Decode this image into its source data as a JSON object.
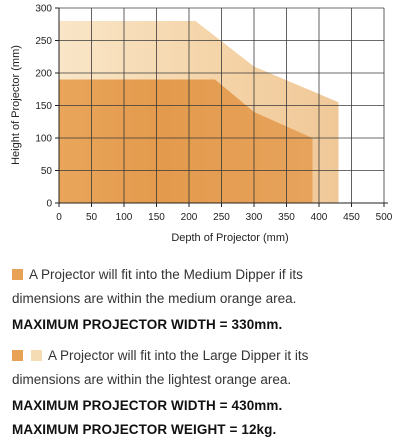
{
  "chart_data": {
    "type": "area",
    "xlabel": "Depth of Projector (mm)",
    "ylabel": "Height of Projector (mm)",
    "xlim": [
      0,
      500
    ],
    "ylim": [
      0,
      300
    ],
    "x_ticks": [
      "0",
      "50",
      "100",
      "150",
      "200",
      "250",
      "300",
      "350",
      "400",
      "450",
      "500"
    ],
    "y_ticks": [
      "0",
      "50",
      "100",
      "150",
      "200",
      "250",
      "300"
    ],
    "grid": true,
    "series": [
      {
        "key": "large",
        "color": "#f6dcb4",
        "points": [
          [
            0,
            0
          ],
          [
            0,
            280
          ],
          [
            210,
            280
          ],
          [
            300,
            210
          ],
          [
            430,
            155
          ],
          [
            430,
            0
          ]
        ]
      },
      {
        "key": "medium",
        "color": "#e8a256",
        "points": [
          [
            0,
            0
          ],
          [
            0,
            190
          ],
          [
            240,
            190
          ],
          [
            300,
            140
          ],
          [
            390,
            100
          ],
          [
            390,
            0
          ]
        ]
      }
    ]
  },
  "legend": {
    "medium": {
      "swatch_color": "#e8a256",
      "line1": "A Projector will fit into the Medium Dipper if its",
      "line2": "dimensions are within the medium orange area.",
      "bold": "MAXIMUM PROJECTOR WIDTH = 330mm."
    },
    "large": {
      "swatch_colors": [
        "#e8a256",
        "#f6dcb4"
      ],
      "line1": "A Projector will fit into the Large Dipper it its",
      "line2": "dimensions are within the lightest orange area.",
      "bold1": "MAXIMUM PROJECTOR WIDTH = 430mm.",
      "bold2": "MAXIMUM PROJECTOR WEIGHT = 12kg."
    }
  }
}
